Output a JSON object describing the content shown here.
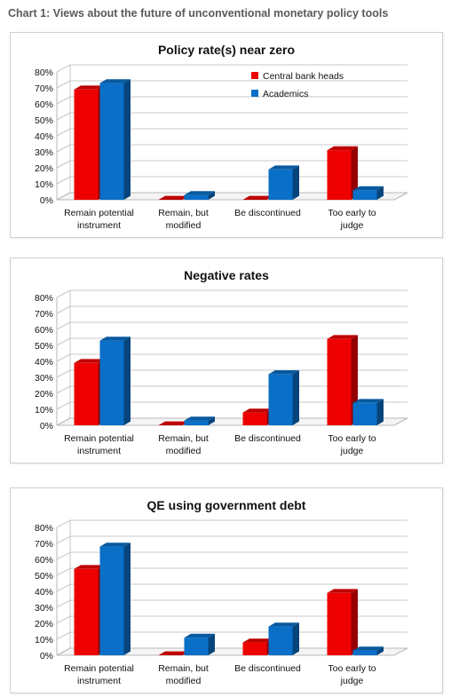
{
  "page_title": "Chart 1: Views about the future of unconventional monetary policy tools",
  "colors": {
    "central_bank_heads": "#ee0000",
    "academics": "#0a6fc7"
  },
  "chart_data": [
    {
      "type": "bar",
      "title": "Policy rate(s) near zero",
      "categories": [
        [
          "Remain potential",
          "instrument"
        ],
        [
          "Remain, but",
          "modified"
        ],
        [
          "Be discontinued"
        ],
        [
          "Too early to",
          "judge"
        ]
      ],
      "series": [
        {
          "name": "Central bank heads",
          "values": [
            69,
            0,
            0,
            31
          ]
        },
        {
          "name": "Academics",
          "values": [
            73,
            3,
            19,
            6
          ]
        }
      ],
      "y_ticks": [
        "0%",
        "10%",
        "20%",
        "30%",
        "40%",
        "50%",
        "60%",
        "70%",
        "80%"
      ],
      "ylim": [
        0,
        80
      ],
      "legend": "top-right",
      "grid": true
    },
    {
      "type": "bar",
      "title": "Negative rates",
      "categories": [
        [
          "Remain potential",
          "instrument"
        ],
        [
          "Remain, but",
          "modified"
        ],
        [
          "Be discontinued"
        ],
        [
          "Too early to",
          "judge"
        ]
      ],
      "series": [
        {
          "name": "Central bank heads",
          "values": [
            39,
            0,
            8,
            54
          ]
        },
        {
          "name": "Academics",
          "values": [
            53,
            3,
            32,
            14
          ]
        }
      ],
      "y_ticks": [
        "0%",
        "10%",
        "20%",
        "30%",
        "40%",
        "50%",
        "60%",
        "70%",
        "80%"
      ],
      "ylim": [
        0,
        80
      ],
      "grid": true
    },
    {
      "type": "bar",
      "title": "QE using government debt",
      "categories": [
        [
          "Remain potential",
          "instrument"
        ],
        [
          "Remain, but",
          "modified"
        ],
        [
          "Be discontinued"
        ],
        [
          "Too early to",
          "judge"
        ]
      ],
      "series": [
        {
          "name": "Central bank heads",
          "values": [
            54,
            0,
            8,
            39
          ]
        },
        {
          "name": "Academics",
          "values": [
            68,
            11,
            18,
            3
          ]
        }
      ],
      "y_ticks": [
        "0%",
        "10%",
        "20%",
        "30%",
        "40%",
        "50%",
        "60%",
        "70%",
        "80%"
      ],
      "ylim": [
        0,
        80
      ],
      "grid": true
    }
  ]
}
